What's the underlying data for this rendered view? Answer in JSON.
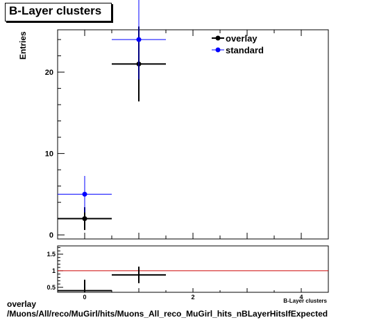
{
  "title": "B-Layer clusters",
  "footer": {
    "line1": "overlay",
    "line2": "/Muons/All/reco/MuGirl/hits/Muons_All_reco_MuGirl_hits_nBLayerHitsIfExpected"
  },
  "colors": {
    "overlay": "#000000",
    "standard": "#0000ff",
    "reference_line": "#cc0000"
  },
  "chart_data": [
    {
      "type": "scatter",
      "ylabel": "Entries",
      "xlim": [
        -0.5,
        4.5
      ],
      "ylim": [
        -0.5,
        25.2
      ],
      "y_ticks": [
        0,
        10,
        20
      ],
      "legend": {
        "placement": "top-right",
        "entries": [
          "overlay",
          "standard"
        ]
      },
      "series": [
        {
          "name": "overlay",
          "points": [
            {
              "x": 0,
              "y": 2,
              "yerr": 1.4,
              "xerr": 0.5
            },
            {
              "x": 1,
              "y": 21,
              "yerr": 4.6,
              "xerr": 0.5
            }
          ]
        },
        {
          "name": "standard",
          "points": [
            {
              "x": 0,
              "y": 5,
              "yerr": 2.24,
              "xerr": 0.5
            },
            {
              "x": 1,
              "y": 24,
              "yerr": 4.9,
              "xerr": 0.5
            }
          ]
        }
      ]
    },
    {
      "type": "scatter",
      "xlabel": "B-Layer clusters",
      "xlim": [
        -0.5,
        4.5
      ],
      "ylim": [
        0.35,
        1.75
      ],
      "x_ticks": [
        0,
        2,
        4
      ],
      "y_ticks": [
        0.5,
        1,
        1.5
      ],
      "y_tick_labels": [
        "0.5",
        "1",
        "1.5"
      ],
      "reference_line": 1,
      "series": [
        {
          "name": "ratio",
          "points": [
            {
              "x": 0,
              "y": 0.4,
              "yerr": 0.33,
              "xerr": 0.5
            },
            {
              "x": 1,
              "y": 0.875,
              "yerr": 0.25,
              "xerr": 0.5
            }
          ]
        }
      ]
    }
  ]
}
